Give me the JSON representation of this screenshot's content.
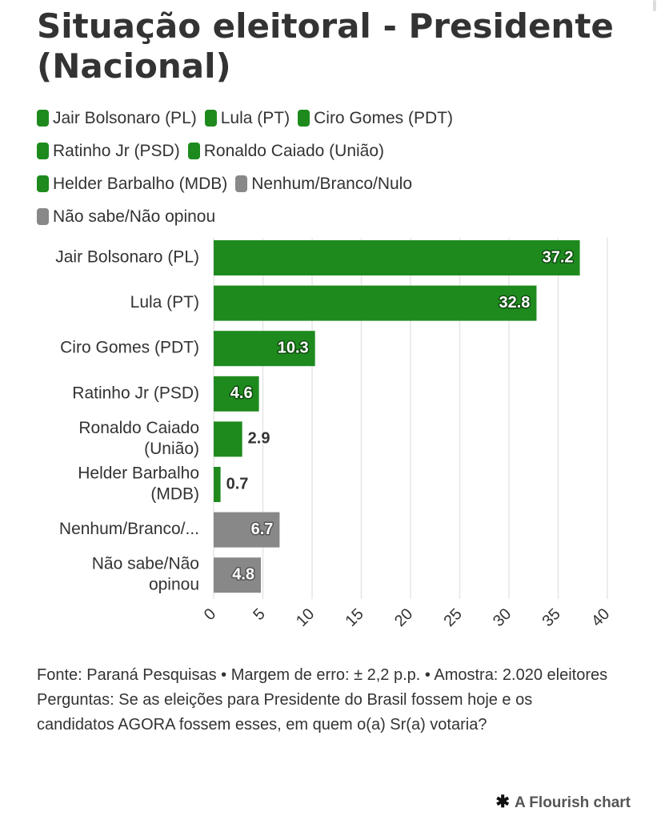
{
  "title": "Situação eleitoral - Presidente (Nacional)",
  "legend": [
    {
      "label": "Jair Bolsonaro (PL)",
      "color": "#1e8a1e"
    },
    {
      "label": "Lula (PT)",
      "color": "#1e8a1e"
    },
    {
      "label": "Ciro Gomes (PDT)",
      "color": "#1e8a1e"
    },
    {
      "label": "Ratinho Jr (PSD)",
      "color": "#1e8a1e"
    },
    {
      "label": "Ronaldo Caiado (União)",
      "color": "#1e8a1e"
    },
    {
      "label": "Helder Barbalho (MDB)",
      "color": "#1e8a1e"
    },
    {
      "label": "Nenhum/Branco/Nulo",
      "color": "#888888"
    },
    {
      "label": "Não sabe/Não opinou",
      "color": "#888888"
    }
  ],
  "chart_data": {
    "type": "bar",
    "orientation": "horizontal",
    "title": "Situação eleitoral - Presidente (Nacional)",
    "categories": [
      [
        "Jair Bolsonaro (PL)"
      ],
      [
        "Lula (PT)"
      ],
      [
        "Ciro Gomes (PDT)"
      ],
      [
        "Ratinho Jr (PSD)"
      ],
      [
        "Ronaldo Caiado",
        "(União)"
      ],
      [
        "Helder Barbalho",
        "(MDB)"
      ],
      [
        "Nenhum/Branco/..."
      ],
      [
        "Não sabe/Não",
        "opinou"
      ]
    ],
    "values": [
      37.2,
      32.8,
      10.3,
      4.6,
      2.9,
      0.7,
      6.7,
      4.8
    ],
    "value_labels": [
      "37.2",
      "32.8",
      "10.3",
      "4.6",
      "2.9",
      "0.7",
      "6.7",
      "4.8"
    ],
    "colors": [
      "#1e8a1e",
      "#1e8a1e",
      "#1e8a1e",
      "#1e8a1e",
      "#1e8a1e",
      "#1e8a1e",
      "#888888",
      "#888888"
    ],
    "xlim": [
      0,
      40
    ],
    "xticks": [
      0,
      5,
      10,
      15,
      20,
      25,
      30,
      35,
      40
    ],
    "xtick_labels": [
      "0",
      "5",
      "10",
      "15",
      "20",
      "25",
      "30",
      "35",
      "40"
    ],
    "grid": true,
    "legend_position": "top"
  },
  "footer": {
    "source": "Fonte: Paraná Pesquisas • Margem de erro: ± 2,2 p.p. • Amostra: 2.020 eleitores",
    "question": "Perguntas: Se as eleições para Presidente do Brasil fossem hoje e os candidatos AGORA fossem esses, em quem o(a) Sr(a) votaria?"
  },
  "credit": {
    "icon": "asterisk-icon",
    "text": "A Flourish chart"
  }
}
